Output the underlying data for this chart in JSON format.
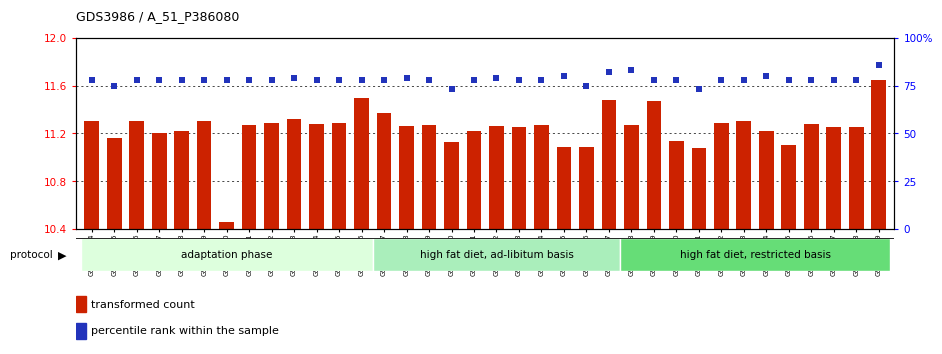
{
  "title": "GDS3986 / A_51_P386080",
  "samples": [
    "GSM672364",
    "GSM672365",
    "GSM672366",
    "GSM672367",
    "GSM672368",
    "GSM672369",
    "GSM672370",
    "GSM672371",
    "GSM672372",
    "GSM672373",
    "GSM672374",
    "GSM672375",
    "GSM672376",
    "GSM672377",
    "GSM672378",
    "GSM672379",
    "GSM672380",
    "GSM672381",
    "GSM672382",
    "GSM672383",
    "GSM672384",
    "GSM672385",
    "GSM672386",
    "GSM672387",
    "GSM672388",
    "GSM672389",
    "GSM672390",
    "GSM672391",
    "GSM672392",
    "GSM672393",
    "GSM672394",
    "GSM672395",
    "GSM672396",
    "GSM672397",
    "GSM672398",
    "GSM672399"
  ],
  "bar_values": [
    11.3,
    11.16,
    11.3,
    11.2,
    11.22,
    11.3,
    10.46,
    11.27,
    11.29,
    11.32,
    11.28,
    11.29,
    11.5,
    11.37,
    11.26,
    11.27,
    11.13,
    11.22,
    11.26,
    11.25,
    11.27,
    11.09,
    11.09,
    11.48,
    11.27,
    11.47,
    11.14,
    11.08,
    11.29,
    11.3,
    11.22,
    11.1,
    11.28,
    11.25,
    11.25,
    11.65
  ],
  "blue_values": [
    78,
    75,
    78,
    78,
    78,
    78,
    78,
    78,
    78,
    79,
    78,
    78,
    78,
    78,
    79,
    78,
    73,
    78,
    79,
    78,
    78,
    80,
    75,
    82,
    83,
    78,
    78,
    73,
    78,
    78,
    80,
    78,
    78,
    78,
    78,
    86
  ],
  "ylim_left": [
    10.4,
    12.0
  ],
  "ylim_right": [
    0,
    100
  ],
  "bar_color": "#CC2200",
  "blue_color": "#2233BB",
  "groups": [
    {
      "label": "adaptation phase",
      "start": 0,
      "end": 13,
      "color": "#DDFFDD"
    },
    {
      "label": "high fat diet, ad-libitum basis",
      "start": 13,
      "end": 24,
      "color": "#AAEEBB"
    },
    {
      "label": "high fat diet, restricted basis",
      "start": 24,
      "end": 36,
      "color": "#66DD77"
    }
  ],
  "left_yticks": [
    10.4,
    10.8,
    11.2,
    11.6,
    12.0
  ],
  "right_yticks": [
    0,
    25,
    50,
    75,
    100
  ],
  "right_yticklabels": [
    "0",
    "25",
    "50",
    "75",
    "100%"
  ],
  "legend_red_label": "transformed count",
  "legend_blue_label": "percentile rank within the sample",
  "protocol_label": "protocol"
}
